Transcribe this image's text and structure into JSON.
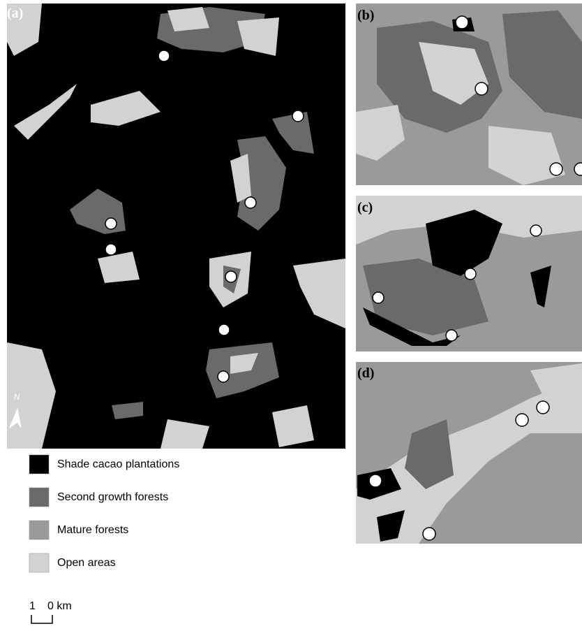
{
  "panels": [
    {
      "label": "(a)"
    },
    {
      "label": "(b)"
    },
    {
      "label": "(c)"
    },
    {
      "label": "(d)"
    }
  ],
  "legend": [
    {
      "label": "Shade cacao plantations",
      "color": "#000000"
    },
    {
      "label": "Second growth forests",
      "color": "#6a6a6a"
    },
    {
      "label": "Mature forests",
      "color": "#9a9a9a"
    },
    {
      "label": "Open areas",
      "color": "#d2d2d2"
    }
  ],
  "north": "N",
  "scale": {
    "left": "1",
    "right": "0 km"
  }
}
